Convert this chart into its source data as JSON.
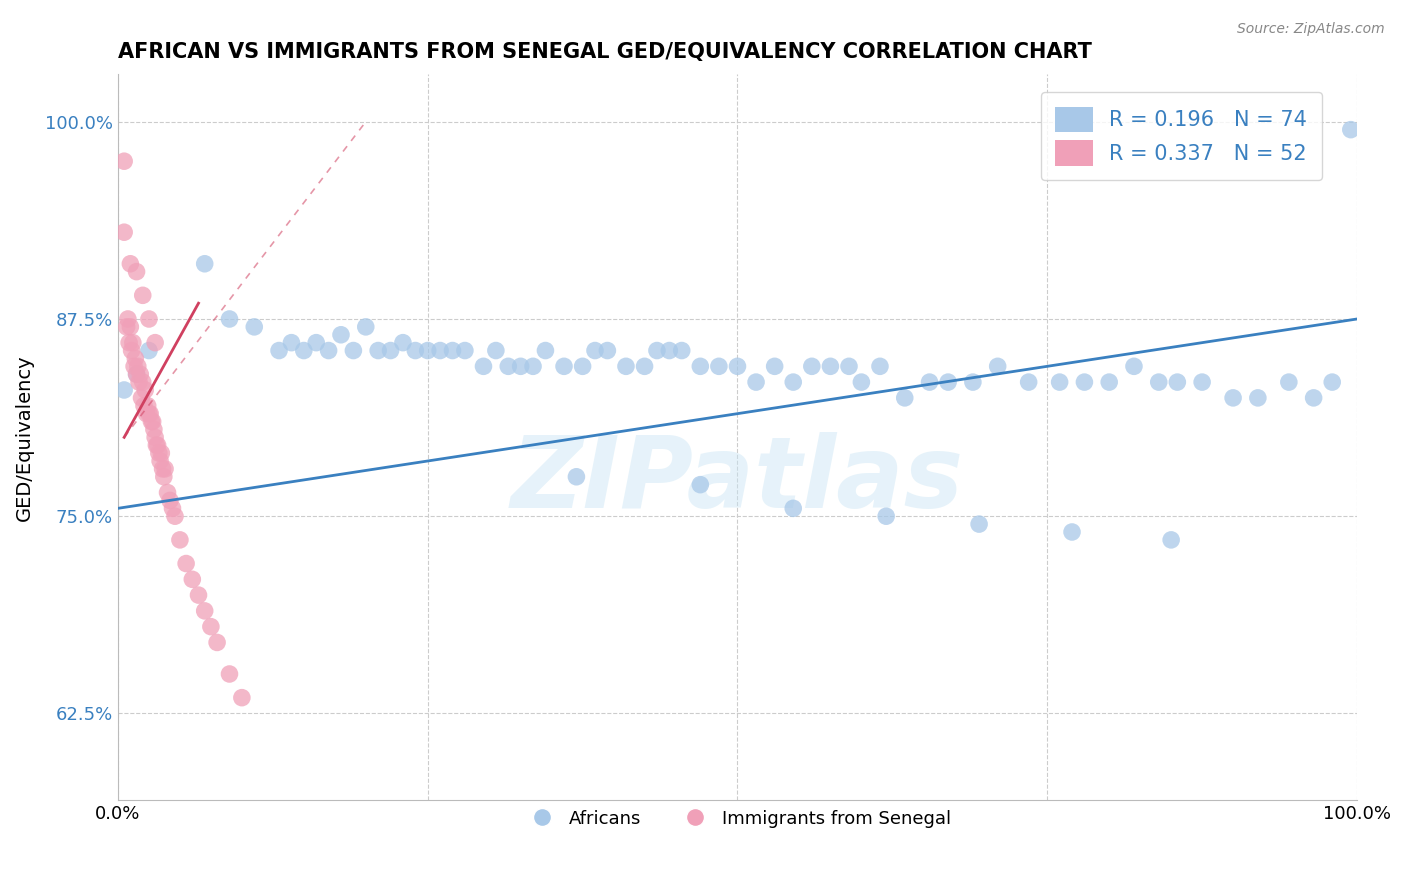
{
  "title": "AFRICAN VS IMMIGRANTS FROM SENEGAL GED/EQUIVALENCY CORRELATION CHART",
  "source": "Source: ZipAtlas.com",
  "ylabel": "GED/Equivalency",
  "xlim": [
    0.0,
    1.0
  ],
  "ylim": [
    0.57,
    1.03
  ],
  "ytick_positions": [
    0.625,
    0.75,
    0.875,
    1.0
  ],
  "ytick_labels": [
    "62.5%",
    "75.0%",
    "87.5%",
    "100.0%"
  ],
  "watermark": "ZIPatlas",
  "legend_R1": "R = 0.196",
  "legend_N1": "N = 74",
  "legend_R2": "R = 0.337",
  "legend_N2": "N = 52",
  "blue_color": "#A8C8E8",
  "pink_color": "#F0A0B8",
  "blue_line_color": "#3A80C0",
  "pink_line_color": "#D04060",
  "grid_color": "#CCCCCC",
  "background_color": "#FFFFFF",
  "blue_line_x0": 0.0,
  "blue_line_y0": 0.755,
  "blue_line_x1": 1.0,
  "blue_line_y1": 0.875,
  "pink_line_solid_x0": 0.005,
  "pink_line_solid_y0": 0.8,
  "pink_line_solid_x1": 0.065,
  "pink_line_solid_y1": 0.885,
  "pink_line_dash_x0": 0.005,
  "pink_line_dash_y0": 0.8,
  "pink_line_dash_x1": 0.2,
  "pink_line_dash_y1": 1.0,
  "blue_scatter_x": [
    0.005,
    0.015,
    0.025,
    0.07,
    0.09,
    0.11,
    0.13,
    0.14,
    0.15,
    0.16,
    0.17,
    0.18,
    0.19,
    0.2,
    0.21,
    0.22,
    0.23,
    0.24,
    0.25,
    0.26,
    0.27,
    0.28,
    0.295,
    0.305,
    0.315,
    0.325,
    0.335,
    0.345,
    0.36,
    0.375,
    0.385,
    0.395,
    0.41,
    0.425,
    0.435,
    0.445,
    0.455,
    0.47,
    0.485,
    0.5,
    0.515,
    0.53,
    0.545,
    0.56,
    0.575,
    0.59,
    0.6,
    0.615,
    0.635,
    0.655,
    0.67,
    0.69,
    0.71,
    0.735,
    0.76,
    0.78,
    0.8,
    0.82,
    0.84,
    0.855,
    0.875,
    0.9,
    0.92,
    0.945,
    0.965,
    0.98,
    0.995,
    0.37,
    0.47,
    0.545,
    0.62,
    0.695,
    0.77,
    0.85
  ],
  "blue_scatter_y": [
    0.83,
    0.84,
    0.855,
    0.91,
    0.875,
    0.87,
    0.855,
    0.86,
    0.855,
    0.86,
    0.855,
    0.865,
    0.855,
    0.87,
    0.855,
    0.855,
    0.86,
    0.855,
    0.855,
    0.855,
    0.855,
    0.855,
    0.845,
    0.855,
    0.845,
    0.845,
    0.845,
    0.855,
    0.845,
    0.845,
    0.855,
    0.855,
    0.845,
    0.845,
    0.855,
    0.855,
    0.855,
    0.845,
    0.845,
    0.845,
    0.835,
    0.845,
    0.835,
    0.845,
    0.845,
    0.845,
    0.835,
    0.845,
    0.825,
    0.835,
    0.835,
    0.835,
    0.845,
    0.835,
    0.835,
    0.835,
    0.835,
    0.845,
    0.835,
    0.835,
    0.835,
    0.825,
    0.825,
    0.835,
    0.825,
    0.835,
    0.995,
    0.775,
    0.77,
    0.755,
    0.75,
    0.745,
    0.74,
    0.735
  ],
  "pink_scatter_x": [
    0.005,
    0.007,
    0.008,
    0.009,
    0.01,
    0.011,
    0.012,
    0.013,
    0.014,
    0.015,
    0.016,
    0.017,
    0.018,
    0.019,
    0.02,
    0.021,
    0.022,
    0.023,
    0.024,
    0.025,
    0.026,
    0.027,
    0.028,
    0.029,
    0.03,
    0.031,
    0.032,
    0.033,
    0.034,
    0.035,
    0.036,
    0.037,
    0.038,
    0.04,
    0.042,
    0.044,
    0.046,
    0.05,
    0.055,
    0.06,
    0.065,
    0.07,
    0.075,
    0.08,
    0.09,
    0.1,
    0.005,
    0.01,
    0.015,
    0.02,
    0.025,
    0.03
  ],
  "pink_scatter_y": [
    0.975,
    0.87,
    0.875,
    0.86,
    0.87,
    0.855,
    0.86,
    0.845,
    0.85,
    0.84,
    0.845,
    0.835,
    0.84,
    0.825,
    0.835,
    0.82,
    0.83,
    0.815,
    0.82,
    0.815,
    0.815,
    0.81,
    0.81,
    0.805,
    0.8,
    0.795,
    0.795,
    0.79,
    0.785,
    0.79,
    0.78,
    0.775,
    0.78,
    0.765,
    0.76,
    0.755,
    0.75,
    0.735,
    0.72,
    0.71,
    0.7,
    0.69,
    0.68,
    0.67,
    0.65,
    0.635,
    0.93,
    0.91,
    0.905,
    0.89,
    0.875,
    0.86
  ]
}
